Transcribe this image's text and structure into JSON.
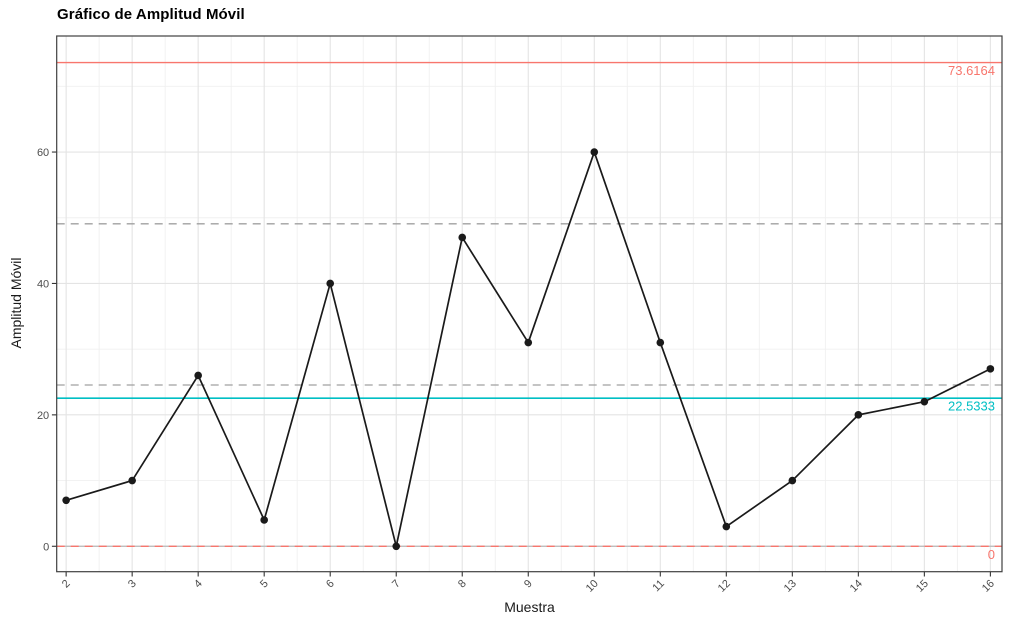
{
  "header": {
    "title": "Gráfico de Amplitud Móvil"
  },
  "chart_data": {
    "type": "line",
    "title": "Gráfico de Amplitud Móvil",
    "xlabel": "Muestra",
    "ylabel": "Amplitud Móvil",
    "x": [
      2,
      3,
      4,
      5,
      6,
      7,
      8,
      9,
      10,
      11,
      12,
      13,
      14,
      15,
      16
    ],
    "values": [
      7,
      10,
      26,
      4,
      40,
      0,
      47,
      31,
      60,
      31,
      3,
      10,
      20,
      22,
      27
    ],
    "x_ticks": [
      2,
      3,
      4,
      5,
      6,
      7,
      8,
      9,
      10,
      11,
      12,
      13,
      14,
      15,
      16
    ],
    "y_ticks": [
      0,
      20,
      40,
      60
    ],
    "xlim": [
      1.857,
      16.176
    ],
    "ylim": [
      -3.87,
      77.66
    ],
    "grid": true,
    "legend": "none",
    "line_color": "#1a1a1a",
    "point_color": "#1a1a1a",
    "reference_lines": [
      {
        "name": "zone-upper",
        "value": 49.08,
        "color": "#a0a0a0",
        "style": "dashed"
      },
      {
        "name": "zone-lower",
        "value": 24.54,
        "color": "#a0a0a0",
        "style": "dashed"
      },
      {
        "name": "ucl",
        "value": 73.6164,
        "label": "73.6164",
        "color": "#F8766D",
        "style": "solid",
        "width": 1.3
      },
      {
        "name": "lcl",
        "value": 0,
        "label": "0",
        "color": "#F8766D",
        "style": "dashed",
        "width": 1.4,
        "underlay": "#b8b8b8"
      },
      {
        "name": "cl",
        "value": 22.5333,
        "label": "22.5333",
        "color": "#00BFC4",
        "style": "solid",
        "width": 1.7
      }
    ],
    "colors": {
      "panel_background": "#ffffff",
      "panel_border": "#404040",
      "grid_major": "#e4e4e4",
      "grid_minor": "#f0f0f0",
      "tick_mark": "#333333",
      "tick_label": "#4d4d4d"
    }
  }
}
